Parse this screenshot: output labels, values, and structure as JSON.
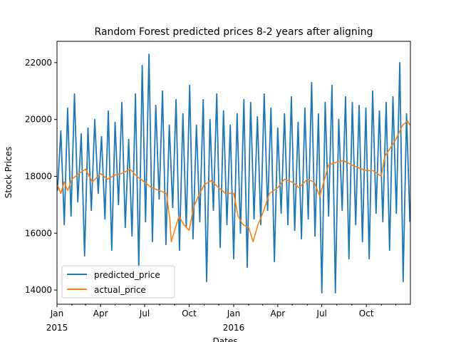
{
  "chart_data": {
    "type": "line",
    "title": "Random Forest predicted prices 8-2 years after aligning",
    "xlabel": "Dates",
    "ylabel": "Stock Prices",
    "x_range": [
      "2015-01-01",
      "2016-12-31"
    ],
    "ylim": [
      13500,
      22750
    ],
    "y_ticks": [
      14000,
      16000,
      18000,
      20000,
      22000
    ],
    "y_tick_labels": [
      "14000",
      "16000",
      "18000",
      "20000",
      "22000"
    ],
    "x_ticks": [
      {
        "date": "2015-01-01",
        "label": "Jan",
        "sublabel": "2015"
      },
      {
        "date": "2015-04-01",
        "label": "Apr",
        "sublabel": ""
      },
      {
        "date": "2015-07-01",
        "label": "Jul",
        "sublabel": ""
      },
      {
        "date": "2015-10-01",
        "label": "Oct",
        "sublabel": ""
      },
      {
        "date": "2016-01-01",
        "label": "Jan",
        "sublabel": "2016"
      },
      {
        "date": "2016-04-01",
        "label": "Apr",
        "sublabel": ""
      },
      {
        "date": "2016-07-01",
        "label": "Jul",
        "sublabel": ""
      },
      {
        "date": "2016-10-01",
        "label": "Oct",
        "sublabel": ""
      }
    ],
    "grid": false,
    "legend_position": "lower-left",
    "series": [
      {
        "name": "predicted_price",
        "color": "#1f77b4",
        "points": [
          [
            "2015-01-02",
            17500
          ],
          [
            "2015-01-09",
            19600
          ],
          [
            "2015-01-16",
            16300
          ],
          [
            "2015-01-23",
            20400
          ],
          [
            "2015-01-30",
            16600
          ],
          [
            "2015-02-06",
            20900
          ],
          [
            "2015-02-13",
            17100
          ],
          [
            "2015-02-20",
            19500
          ],
          [
            "2015-02-27",
            15200
          ],
          [
            "2015-03-06",
            19700
          ],
          [
            "2015-03-13",
            16800
          ],
          [
            "2015-03-20",
            20000
          ],
          [
            "2015-03-27",
            17400
          ],
          [
            "2015-04-03",
            19400
          ],
          [
            "2015-04-10",
            16500
          ],
          [
            "2015-04-17",
            20300
          ],
          [
            "2015-04-24",
            15400
          ],
          [
            "2015-05-01",
            19900
          ],
          [
            "2015-05-08",
            17000
          ],
          [
            "2015-05-15",
            20600
          ],
          [
            "2015-05-22",
            16200
          ],
          [
            "2015-05-29",
            19300
          ],
          [
            "2015-06-05",
            15900
          ],
          [
            "2015-06-12",
            20900
          ],
          [
            "2015-06-19",
            14800
          ],
          [
            "2015-06-26",
            21900
          ],
          [
            "2015-07-03",
            16400
          ],
          [
            "2015-07-10",
            22300
          ],
          [
            "2015-07-17",
            15700
          ],
          [
            "2015-07-24",
            20500
          ],
          [
            "2015-07-31",
            17200
          ],
          [
            "2015-08-07",
            21000
          ],
          [
            "2015-08-14",
            15600
          ],
          [
            "2015-08-21",
            19800
          ],
          [
            "2015-08-28",
            16900
          ],
          [
            "2015-09-04",
            20700
          ],
          [
            "2015-09-11",
            15400
          ],
          [
            "2015-09-18",
            20200
          ],
          [
            "2015-09-25",
            16200
          ],
          [
            "2015-10-02",
            21200
          ],
          [
            "2015-10-09",
            15800
          ],
          [
            "2015-10-16",
            19800
          ],
          [
            "2015-10-23",
            16400
          ],
          [
            "2015-10-30",
            20700
          ],
          [
            "2015-11-06",
            14300
          ],
          [
            "2015-11-13",
            20000
          ],
          [
            "2015-11-20",
            16800
          ],
          [
            "2015-11-27",
            20900
          ],
          [
            "2015-12-04",
            15500
          ],
          [
            "2015-12-11",
            20300
          ],
          [
            "2015-12-18",
            16300
          ],
          [
            "2015-12-25",
            19800
          ],
          [
            "2016-01-01",
            15100
          ],
          [
            "2016-01-08",
            20200
          ],
          [
            "2016-01-15",
            16000
          ],
          [
            "2016-01-22",
            20700
          ],
          [
            "2016-01-29",
            14800
          ],
          [
            "2016-02-05",
            20600
          ],
          [
            "2016-02-12",
            16500
          ],
          [
            "2016-02-19",
            20100
          ],
          [
            "2016-02-26",
            16300
          ],
          [
            "2016-03-04",
            20900
          ],
          [
            "2016-03-11",
            16800
          ],
          [
            "2016-03-18",
            20400
          ],
          [
            "2016-03-25",
            15000
          ],
          [
            "2016-04-01",
            19700
          ],
          [
            "2016-04-08",
            16700
          ],
          [
            "2016-04-15",
            20200
          ],
          [
            "2016-04-22",
            16300
          ],
          [
            "2016-04-29",
            20800
          ],
          [
            "2016-05-06",
            16100
          ],
          [
            "2016-05-13",
            19900
          ],
          [
            "2016-05-20",
            15800
          ],
          [
            "2016-05-27",
            20400
          ],
          [
            "2016-06-03",
            16500
          ],
          [
            "2016-06-10",
            21300
          ],
          [
            "2016-06-17",
            15900
          ],
          [
            "2016-06-24",
            20200
          ],
          [
            "2016-07-01",
            13900
          ],
          [
            "2016-07-08",
            20600
          ],
          [
            "2016-07-15",
            16600
          ],
          [
            "2016-07-22",
            21200
          ],
          [
            "2016-07-29",
            13900
          ],
          [
            "2016-08-05",
            20000
          ],
          [
            "2016-08-12",
            16800
          ],
          [
            "2016-08-19",
            20800
          ],
          [
            "2016-08-26",
            15100
          ],
          [
            "2016-09-02",
            20600
          ],
          [
            "2016-09-09",
            16300
          ],
          [
            "2016-09-16",
            20500
          ],
          [
            "2016-09-23",
            15700
          ],
          [
            "2016-09-30",
            20400
          ],
          [
            "2016-10-07",
            15100
          ],
          [
            "2016-10-14",
            21000
          ],
          [
            "2016-10-21",
            16700
          ],
          [
            "2016-10-28",
            20300
          ],
          [
            "2016-11-04",
            16400
          ],
          [
            "2016-11-11",
            20600
          ],
          [
            "2016-11-18",
            15400
          ],
          [
            "2016-11-25",
            20800
          ],
          [
            "2016-12-02",
            16700
          ],
          [
            "2016-12-09",
            22000
          ],
          [
            "2016-12-16",
            14300
          ],
          [
            "2016-12-23",
            20200
          ],
          [
            "2016-12-30",
            16400
          ]
        ]
      },
      {
        "name": "actual_price",
        "color": "#ff7f0e",
        "points": [
          [
            "2015-01-02",
            17700
          ],
          [
            "2015-01-09",
            17400
          ],
          [
            "2015-01-16",
            17800
          ],
          [
            "2015-01-23",
            17500
          ],
          [
            "2015-02-01",
            17900
          ],
          [
            "2015-02-15",
            18100
          ],
          [
            "2015-03-01",
            18250
          ],
          [
            "2015-03-15",
            17800
          ],
          [
            "2015-04-01",
            18100
          ],
          [
            "2015-04-15",
            17900
          ],
          [
            "2015-05-01",
            18050
          ],
          [
            "2015-05-15",
            18100
          ],
          [
            "2015-06-01",
            18250
          ],
          [
            "2015-06-15",
            18000
          ],
          [
            "2015-07-01",
            17800
          ],
          [
            "2015-07-15",
            17600
          ],
          [
            "2015-08-01",
            17500
          ],
          [
            "2015-08-15",
            17400
          ],
          [
            "2015-08-22",
            16500
          ],
          [
            "2015-08-25",
            15700
          ],
          [
            "2015-09-01",
            16100
          ],
          [
            "2015-09-10",
            16600
          ],
          [
            "2015-09-20",
            16300
          ],
          [
            "2015-10-01",
            16100
          ],
          [
            "2015-10-10",
            16900
          ],
          [
            "2015-10-20",
            17300
          ],
          [
            "2015-11-01",
            17700
          ],
          [
            "2015-11-15",
            17850
          ],
          [
            "2015-12-01",
            17600
          ],
          [
            "2015-12-15",
            17400
          ],
          [
            "2016-01-01",
            17400
          ],
          [
            "2016-01-10",
            16600
          ],
          [
            "2016-01-20",
            16300
          ],
          [
            "2016-02-01",
            16200
          ],
          [
            "2016-02-10",
            15700
          ],
          [
            "2016-02-20",
            16300
          ],
          [
            "2016-03-01",
            16700
          ],
          [
            "2016-03-15",
            17400
          ],
          [
            "2016-04-01",
            17600
          ],
          [
            "2016-04-15",
            17900
          ],
          [
            "2016-05-01",
            17800
          ],
          [
            "2016-05-15",
            17600
          ],
          [
            "2016-06-01",
            17900
          ],
          [
            "2016-06-15",
            17800
          ],
          [
            "2016-06-27",
            17300
          ],
          [
            "2016-07-05",
            17800
          ],
          [
            "2016-07-15",
            18400
          ],
          [
            "2016-08-01",
            18500
          ],
          [
            "2016-08-15",
            18550
          ],
          [
            "2016-09-01",
            18400
          ],
          [
            "2016-09-15",
            18300
          ],
          [
            "2016-10-01",
            18200
          ],
          [
            "2016-10-15",
            18200
          ],
          [
            "2016-11-01",
            18000
          ],
          [
            "2016-11-08",
            18700
          ],
          [
            "2016-11-20",
            19000
          ],
          [
            "2016-12-01",
            19300
          ],
          [
            "2016-12-15",
            19800
          ],
          [
            "2016-12-25",
            19950
          ],
          [
            "2016-12-30",
            19800
          ]
        ]
      }
    ]
  }
}
